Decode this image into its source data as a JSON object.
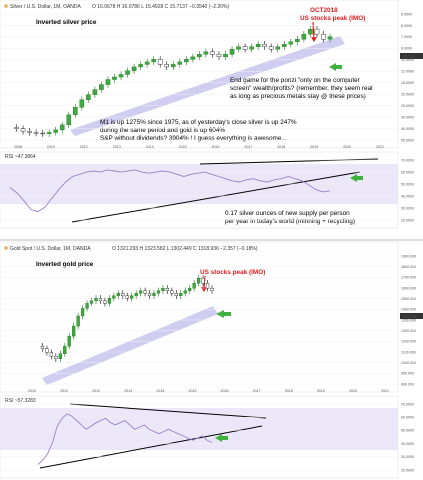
{
  "chart_data": [
    {
      "type": "candlestick",
      "header": {
        "symbol": "Silver / U.S. Dollar, 1M, OANDA",
        "ohlc": "O 16.0678 H 16.0786 L 15.4928 C 15.7137 −0.3540 (−2.20%)"
      },
      "title": "Inverted silver price",
      "peak_label": [
        "OCT2018",
        "US stocks peak (IMO)"
      ],
      "price_tag": "15.7137",
      "x_ticks": [
        "2008",
        "2010",
        "2012",
        "2013",
        "2014",
        "2015",
        "2016",
        "2017",
        "2018",
        "2019",
        "2020",
        "2021"
      ],
      "y_ticks": [
        "5.0000",
        "6.0000",
        "7.0000",
        "8.0000",
        "10.0000",
        "12.0000",
        "15.0000",
        "20.0000",
        "25.0000",
        "30.0000",
        "40.0000",
        "50.0000"
      ],
      "annotations": [
        "End game for the ponzi \"only on the computer",
        "screen\" wealth/profits? (remember, they seem real",
        "as long as precious metals stay @ these prices)",
        "M1 is up 1275% since 1975, as of yesterday's close silver is up 247%",
        "during the same period and gold is up 604%",
        "S&P without dividends? 3904% !     I guess everything is awesome..."
      ],
      "close_series": [
        10,
        9,
        7,
        6,
        5.5,
        5,
        6,
        8,
        12,
        20,
        26,
        32,
        36,
        40,
        44,
        48,
        50,
        52,
        55,
        58,
        60,
        62,
        64,
        60,
        58,
        60,
        62,
        64,
        66,
        68,
        70,
        68,
        66,
        68,
        72,
        74,
        72,
        74,
        76,
        74,
        72,
        74,
        76,
        78,
        80,
        84,
        88,
        84,
        80,
        82
      ]
    },
    {
      "type": "line",
      "header": "RSI ~47.3864",
      "y_ticks": [
        "70.0000",
        "60.0000",
        "50.0000",
        "40.0000",
        "30.0000",
        "20.0000"
      ],
      "annotations": [
        "0.17 silver ounces of new supply per person",
        "per year in today's world (minning + recycling)"
      ],
      "series": [
        50,
        45,
        38,
        30,
        28,
        32,
        40,
        48,
        55,
        60,
        62,
        64,
        65,
        64,
        66,
        65,
        64,
        65,
        66,
        64,
        63,
        64,
        65,
        64,
        62,
        60,
        62,
        63,
        64,
        62,
        60,
        58,
        56,
        55,
        57,
        58,
        56,
        55,
        57,
        58,
        60,
        58,
        56,
        52,
        48,
        46,
        47
      ]
    },
    {
      "type": "candlestick",
      "header": {
        "symbol": "Gold Spot / U.S. Dollar, 1M, OANDA",
        "ohlc": "O 1321.293 H 1323.582 L 1302.449 C 1318.936 −2.357 (−0.18%)"
      },
      "title": "Inverted gold price",
      "peak_label": "US stocks peak (IMO)",
      "price_tag": "1318.936",
      "x_ticks": [
        "2010",
        "2011",
        "2012",
        "2013",
        "2014",
        "2015",
        "2016",
        "2017",
        "2018",
        "2019",
        "2020",
        "2021"
      ],
      "y_ticks": [
        "1900.000",
        "1800.000",
        "1700.000",
        "1600.000",
        "1500.000",
        "1400.000",
        "1350.000",
        "1300.000",
        "1200.000",
        "1100.000",
        "1000.000",
        "950.000",
        "900.000"
      ],
      "close_series": [
        30,
        28,
        25,
        22,
        20,
        24,
        30,
        38,
        46,
        54,
        60,
        64,
        66,
        68,
        66,
        64,
        68,
        70,
        72,
        70,
        68,
        70,
        72,
        74,
        72,
        70,
        72,
        74,
        76,
        74,
        72,
        70,
        72,
        74,
        76,
        80,
        84,
        80,
        76,
        74
      ]
    },
    {
      "type": "line",
      "header": "RSI ~57.3283",
      "y_ticks": [
        "70.0000",
        "60.0000",
        "50.0000",
        "40.0000",
        "30.0000",
        "20.0000"
      ],
      "series": [
        20,
        24,
        30,
        40,
        55,
        62,
        66,
        64,
        60,
        56,
        52,
        55,
        58,
        60,
        62,
        58,
        56,
        58,
        60,
        56,
        52,
        54,
        56,
        52,
        50,
        48,
        50,
        52,
        50,
        48,
        46,
        44,
        42,
        44,
        46,
        42,
        40
      ]
    }
  ]
}
